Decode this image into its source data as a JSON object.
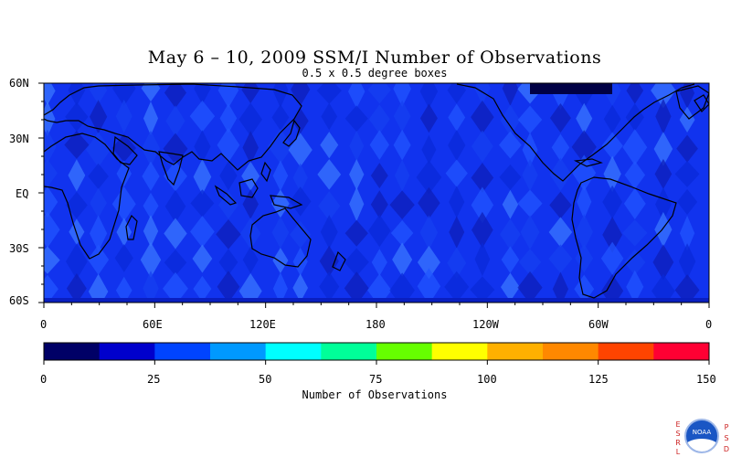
{
  "title": "May 6 – 10, 2009 SSM/I Number of Observations",
  "subtitle": "0.5 x 0.5 degree boxes",
  "lat_labels": [
    "60N",
    "30N",
    "EQ",
    "30S",
    "60S"
  ],
  "lon_labels": [
    "0",
    "60E",
    "120E",
    "180",
    "120W",
    "60W",
    "0"
  ],
  "colorbar": {
    "title": "Number of Observations",
    "ticks": [
      "0",
      "25",
      "50",
      "75",
      "100",
      "125",
      "150"
    ],
    "colors": [
      "#000066",
      "#0000cc",
      "#0044ff",
      "#0099ff",
      "#00ffff",
      "#00ff99",
      "#66ff00",
      "#ffff00",
      "#ffb000",
      "#ff8800",
      "#ff4400",
      "#ff0033"
    ]
  },
  "logo": {
    "left_letters": [
      "E",
      "S",
      "R",
      "L"
    ],
    "right_letters": [
      "P",
      "S",
      "D"
    ],
    "badge_text": "NOAA"
  }
}
